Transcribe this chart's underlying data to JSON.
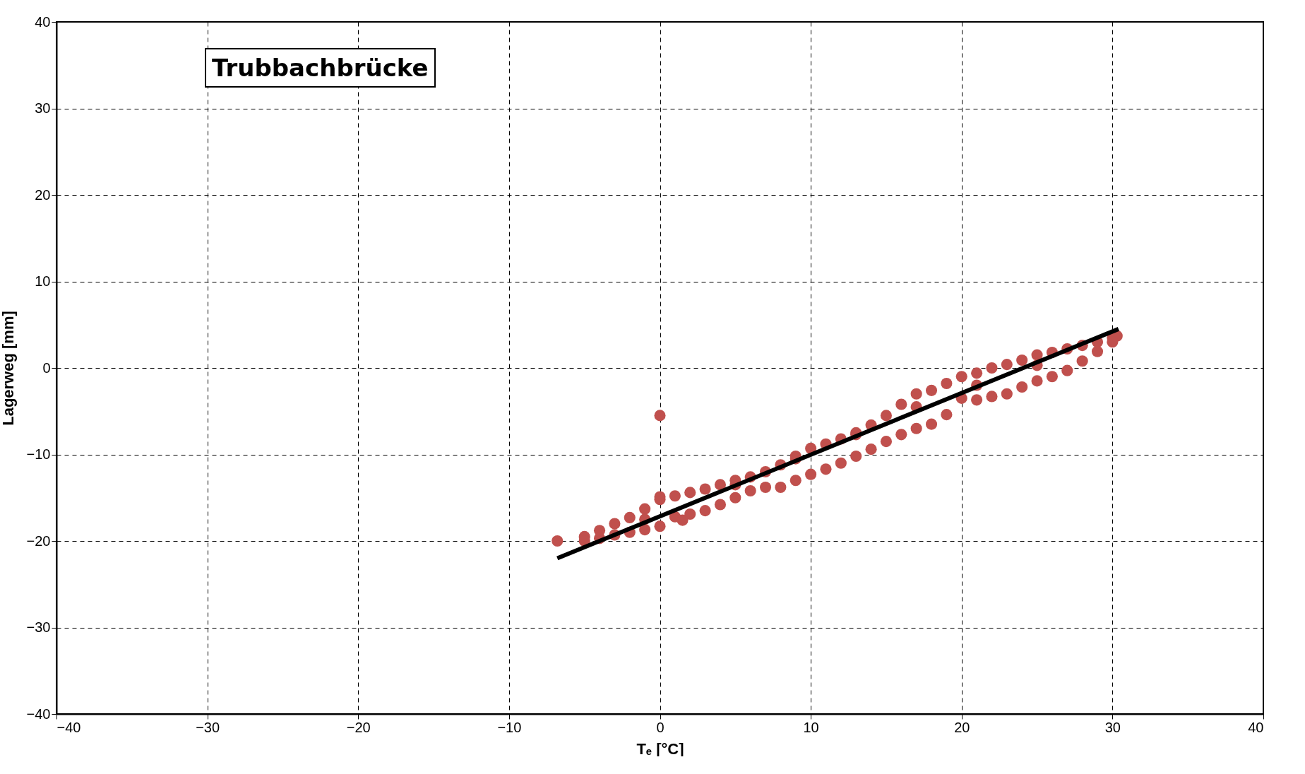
{
  "chart_data": {
    "type": "scatter",
    "xlabel": "Tₑ [°C]",
    "ylabel": "Lagerweg [mm]",
    "annotations": [
      "Trubbachbrücke"
    ],
    "xlim": [
      -40,
      40
    ],
    "xticks": [
      -40,
      -30,
      -20,
      -10,
      0,
      10,
      20,
      30,
      40
    ],
    "ylim": [
      -40,
      40
    ],
    "yticks": [
      -40,
      -30,
      -20,
      -10,
      0,
      10,
      20,
      30,
      40
    ],
    "grid": true,
    "series": [
      {
        "marker": "circle",
        "color": "#c0504d",
        "x": [
          -6.8,
          -5,
          -4,
          -3,
          -2,
          -1,
          0,
          0,
          1,
          2,
          3,
          4,
          5,
          6,
          7,
          8,
          9,
          10,
          11,
          12,
          13,
          14,
          15,
          16,
          17,
          18,
          19,
          20,
          21,
          22,
          23,
          24,
          25,
          26,
          27,
          28,
          29,
          30,
          30.3,
          -5,
          -4,
          -3,
          -2,
          -1,
          0,
          1,
          2,
          3,
          4,
          5,
          6,
          7,
          8,
          9,
          10,
          11,
          12,
          13,
          14,
          15,
          16,
          17,
          18,
          19,
          20,
          21,
          22,
          23,
          24,
          25,
          26,
          27,
          28,
          29,
          30,
          0,
          1.5,
          -1,
          5,
          9,
          13,
          17,
          21,
          25
        ],
        "values": [
          -20,
          -19.5,
          -18.8,
          -18,
          -17.3,
          -16.3,
          -15.2,
          -14.9,
          -14.8,
          -14.4,
          -14,
          -13.5,
          -13,
          -12.6,
          -12,
          -11.2,
          -10.2,
          -9.3,
          -8.8,
          -8.2,
          -7.5,
          -6.6,
          -5.5,
          -4.2,
          -3,
          -2.6,
          -1.8,
          -1,
          -0.6,
          0,
          0.4,
          0.9,
          1.5,
          1.8,
          2.2,
          2.6,
          3,
          3.5,
          3.7,
          -20,
          -19.7,
          -19.3,
          -19,
          -18.7,
          -18.3,
          -17.2,
          -16.9,
          -16.5,
          -15.8,
          -15,
          -14.2,
          -13.8,
          -13.8,
          -13,
          -12.3,
          -11.7,
          -11,
          -10.2,
          -9.4,
          -8.5,
          -7.7,
          -7,
          -6.5,
          -5.4,
          -3.5,
          -3.7,
          -3.3,
          -3,
          -2.2,
          -1.5,
          -1,
          -0.3,
          0.8,
          1.9,
          3,
          -5.5,
          -17.6,
          -17.5,
          -13.5,
          -10.5,
          -7.7,
          -4.5,
          -2,
          0.3
        ]
      },
      {
        "type": "line",
        "marker": "none",
        "color": "#000000",
        "x": [
          -6.8,
          30.4
        ],
        "values": [
          -22,
          4.5
        ]
      }
    ]
  }
}
